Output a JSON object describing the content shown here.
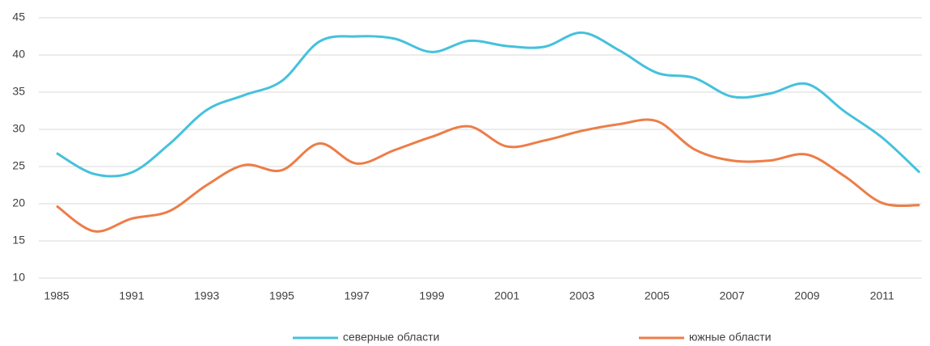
{
  "chart_data": {
    "type": "line",
    "categories": [
      "1985",
      null,
      "1991",
      null,
      "1993",
      null,
      "1995",
      null,
      "1997",
      null,
      "1999",
      null,
      "2001",
      null,
      "2003",
      null,
      "2005",
      null,
      "2007",
      null,
      "2009",
      null,
      "2011",
      null
    ],
    "series": [
      {
        "name": "северные области",
        "color": "#45c1dc",
        "values": [
          26.8,
          24.0,
          24.2,
          28.0,
          32.6,
          34.6,
          36.5,
          41.8,
          42.5,
          42.2,
          40.4,
          41.9,
          41.2,
          41.1,
          43.0,
          40.6,
          37.6,
          36.9,
          34.4,
          34.8,
          36.1,
          32.4,
          28.9,
          24.2
        ]
      },
      {
        "name": "южные области",
        "color": "#ed7d47",
        "values": [
          19.7,
          16.3,
          18.0,
          19.0,
          22.5,
          25.2,
          24.5,
          28.1,
          25.4,
          27.2,
          29.0,
          30.4,
          27.7,
          28.5,
          29.8,
          30.7,
          31.1,
          27.3,
          25.8,
          25.8,
          26.6,
          23.7,
          20.1,
          19.8
        ]
      }
    ],
    "ylim": [
      10,
      45
    ],
    "yticks": [
      10,
      15,
      20,
      25,
      30,
      35,
      40,
      45
    ],
    "grid": true,
    "legend": "bottom"
  }
}
